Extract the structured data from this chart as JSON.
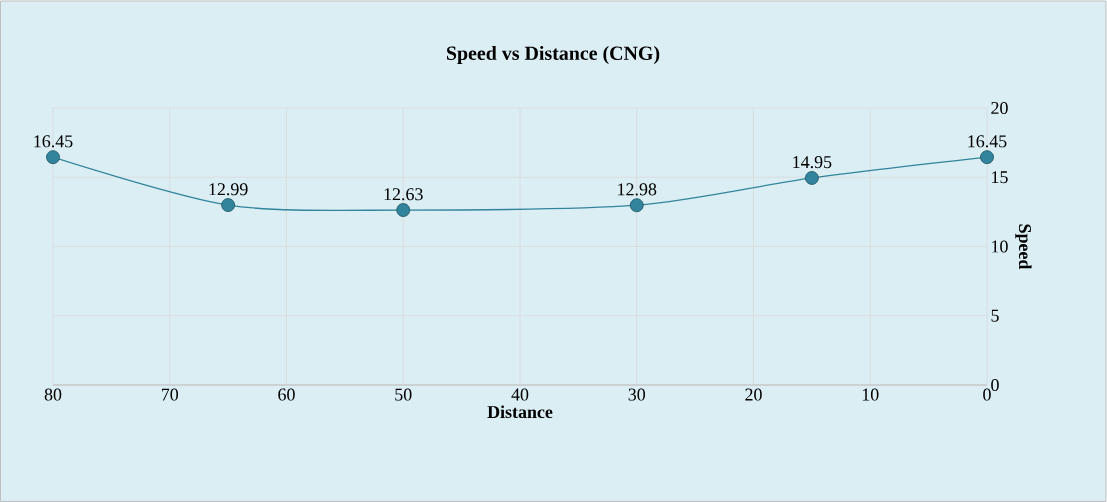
{
  "chart_data": {
    "type": "line",
    "title": "Speed vs Distance (CNG)",
    "xlabel": "Distance",
    "ylabel": "Speed",
    "x": [
      80,
      65,
      50,
      30,
      15,
      0
    ],
    "series": [
      {
        "color": "#31849b",
        "values": [
          16.45,
          12.99,
          12.63,
          12.98,
          14.95,
          16.45
        ]
      }
    ],
    "xlim": [
      80,
      0
    ],
    "xticks": [
      80,
      70,
      60,
      50,
      40,
      30,
      20,
      10,
      0
    ],
    "ylim": [
      0,
      20
    ],
    "yticks": [
      0,
      5,
      10,
      15,
      20
    ],
    "grid": true,
    "marker": "circle",
    "line_style": "solid",
    "data_labels": true
  }
}
